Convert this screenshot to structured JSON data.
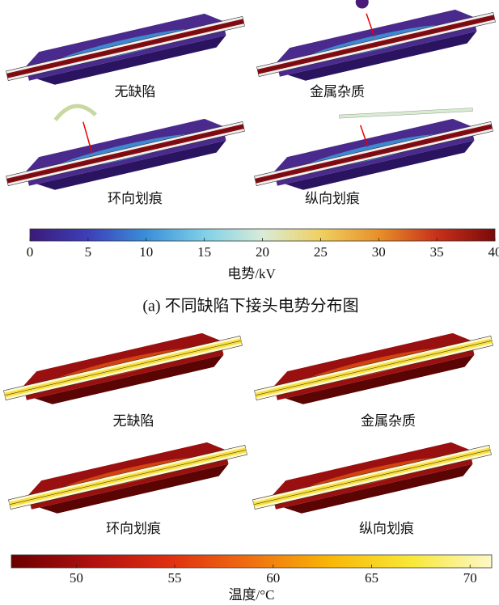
{
  "panel_a": {
    "labels": [
      "无缺陷",
      "金属杂质",
      "环向划痕",
      "纵向划痕"
    ],
    "colorbar": {
      "label": "电势/kV",
      "xlim": [
        0,
        40
      ],
      "xticks": [
        0,
        5,
        10,
        15,
        20,
        25,
        30,
        35,
        40
      ],
      "colors": [
        "#3b1a7a",
        "#3d3fb8",
        "#3a8fd8",
        "#7fd0e8",
        "#d8ecd8",
        "#f0d060",
        "#e8902a",
        "#c8301a",
        "#7a0a0a"
      ]
    },
    "caption": "(a) 不同缺陷下接头电势分布图"
  },
  "panel_b": {
    "labels": [
      "无缺陷",
      "金属杂质",
      "环向划痕",
      "纵向划痕"
    ],
    "colorbar": {
      "label": "温度/°C",
      "xlim": [
        46.7,
        71.1
      ],
      "xticks": [
        50,
        55,
        60,
        65,
        70
      ],
      "colors": [
        "#6a0000",
        "#b01010",
        "#e03010",
        "#f07010",
        "#f8b808",
        "#f8e838",
        "#fcf8c8"
      ]
    }
  }
}
